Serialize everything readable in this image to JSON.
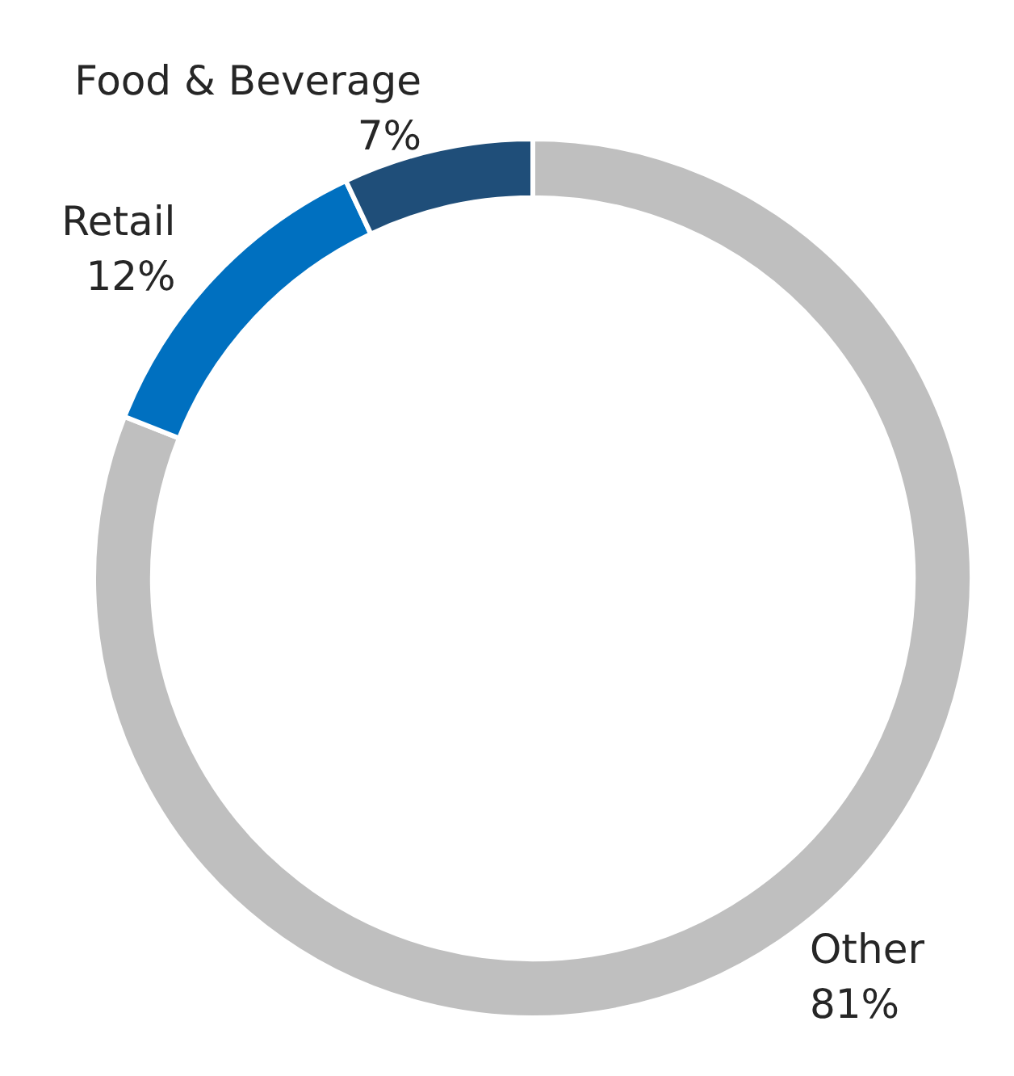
{
  "chart_data": {
    "type": "donut",
    "categories": [
      "Other",
      "Retail",
      "Food & Beverage"
    ],
    "values": [
      81,
      12,
      7
    ],
    "value_labels": [
      "81%",
      "12%",
      "7%"
    ],
    "colors": [
      "#bfbfbf",
      "#0070c0",
      "#1f4e79"
    ],
    "legend": false
  }
}
